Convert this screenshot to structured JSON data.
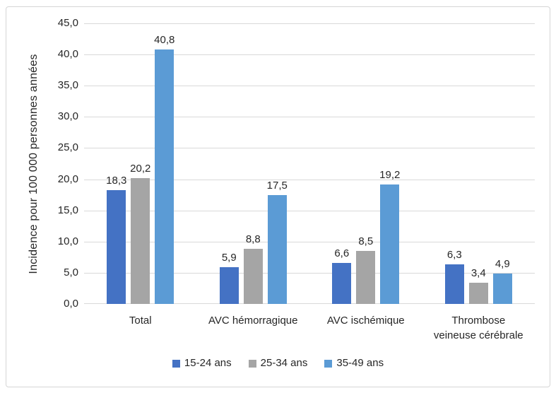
{
  "chart_data": {
    "type": "bar",
    "title": "",
    "xlabel": "",
    "ylabel": "Incidence pour 100 000 personnes années",
    "categories": [
      "Total",
      "AVC hémorragique",
      "AVC ischémique",
      "Thrombose veineuse cérébrale"
    ],
    "series": [
      {
        "name": "15-24 ans",
        "color": "#4472C4",
        "values": [
          18.3,
          5.9,
          6.6,
          6.3
        ],
        "value_labels": [
          "18,3",
          "5,9",
          "6,6",
          "6,3"
        ]
      },
      {
        "name": "25-34 ans",
        "color": "#A5A5A5",
        "values": [
          20.2,
          8.8,
          8.5,
          3.4
        ],
        "value_labels": [
          "20,2",
          "8,8",
          "8,5",
          "3,4"
        ]
      },
      {
        "name": "35-49 ans",
        "color": "#5B9BD5",
        "values": [
          40.8,
          17.5,
          19.2,
          4.9
        ],
        "value_labels": [
          "40,8",
          "17,5",
          "19,2",
          "4,9"
        ]
      }
    ],
    "ylim": [
      0,
      45
    ],
    "ytick_step": 5,
    "ytick_labels": [
      "0,0",
      "5,0",
      "10,0",
      "15,0",
      "20,0",
      "25,0",
      "30,0",
      "35,0",
      "40,0",
      "45,0"
    ],
    "grid": true,
    "legend_position": "bottom",
    "colors": {
      "gridline": "#D9D9D9",
      "text": "#262626",
      "frame_border": "#D5D5D5",
      "background": "#FFFFFF"
    }
  }
}
